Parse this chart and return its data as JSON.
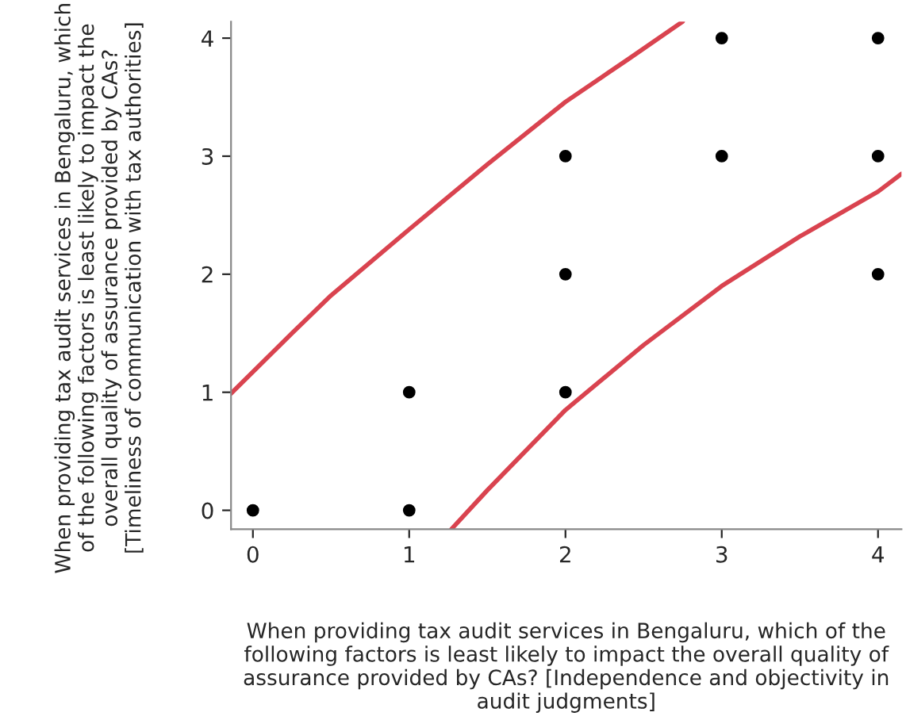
{
  "chart_data": {
    "type": "scatter",
    "xlabel": "When providing tax audit services in Bengaluru, which of the following factors is least likely to impact the overall quality of assurance provided by CAs? [Independence and objectivity in audit judgments]",
    "ylabel": "When providing tax audit services in Bengaluru, which of the following factors is least likely to impact the overall quality of assurance provided by CAs? [Timeliness of communication with tax authorities]",
    "xlim": [
      -0.14,
      4.15
    ],
    "ylim": [
      -0.16,
      4.14
    ],
    "xticks": [
      0,
      1,
      2,
      3,
      4
    ],
    "yticks": [
      0,
      1,
      2,
      3,
      4
    ],
    "grid": false,
    "marker": "circle",
    "series": [
      {
        "color": "#000000",
        "x": [
          0,
          1,
          1,
          2,
          2,
          2,
          3,
          3,
          4,
          4,
          4
        ],
        "values": [
          0,
          0,
          1,
          1,
          2,
          3,
          3,
          4,
          2,
          3,
          4
        ]
      },
      {
        "type": "line",
        "marker": "none",
        "color": "#d9434f",
        "x": [
          -0.14,
          0.25,
          0.5,
          1,
          1.5,
          2,
          2.4,
          2.75
        ],
        "values": [
          0.99,
          1.5,
          1.82,
          2.38,
          2.93,
          3.46,
          3.82,
          4.14
        ]
      },
      {
        "type": "line",
        "marker": "none",
        "color": "#d9434f",
        "x": [
          1.27,
          1.5,
          2,
          2.5,
          3,
          3.5,
          4,
          4.15
        ],
        "values": [
          -0.16,
          0.17,
          0.85,
          1.4,
          1.9,
          2.32,
          2.7,
          2.85
        ]
      }
    ]
  }
}
